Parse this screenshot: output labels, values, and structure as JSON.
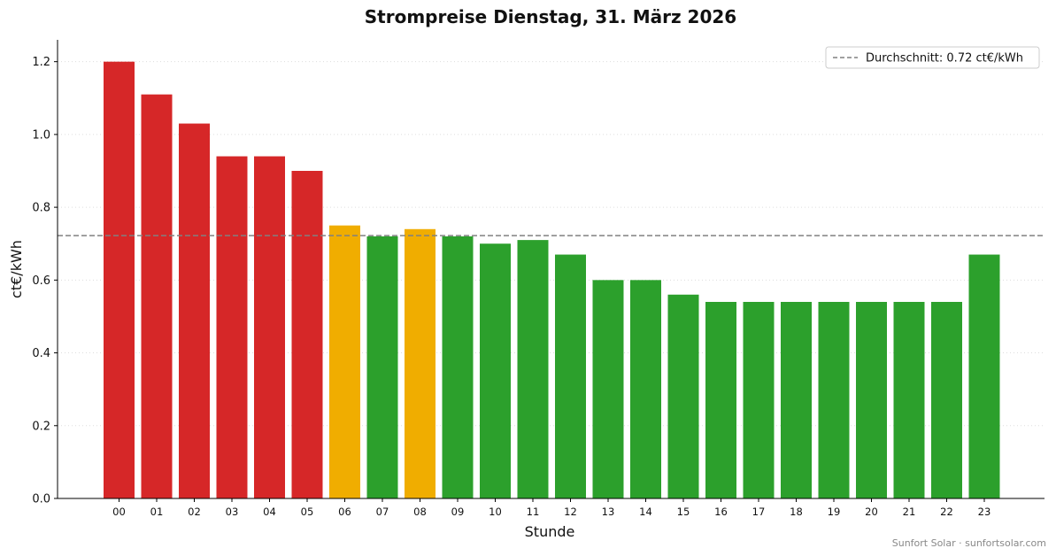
{
  "chart_data": {
    "type": "bar",
    "title": "Strompreise Dienstag, 31. März 2026",
    "xlabel": "Stunde",
    "ylabel": "ct€/kWh",
    "ylim": [
      0,
      1.26
    ],
    "yticks": [
      "0.0",
      "0.2",
      "0.4",
      "0.6",
      "0.8",
      "1.0",
      "1.2"
    ],
    "categories": [
      "00",
      "01",
      "02",
      "03",
      "04",
      "05",
      "06",
      "07",
      "08",
      "09",
      "10",
      "11",
      "12",
      "13",
      "14",
      "15",
      "16",
      "17",
      "18",
      "19",
      "20",
      "21",
      "22",
      "23"
    ],
    "values": [
      1.2,
      1.11,
      1.03,
      0.94,
      0.94,
      0.9,
      0.75,
      0.72,
      0.74,
      0.72,
      0.7,
      0.71,
      0.67,
      0.6,
      0.6,
      0.56,
      0.54,
      0.54,
      0.54,
      0.54,
      0.54,
      0.54,
      0.54,
      0.67
    ],
    "bar_colors": [
      "#d62728",
      "#d62728",
      "#d62728",
      "#d62728",
      "#d62728",
      "#d62728",
      "#f0ad00",
      "#2ca02c",
      "#f0ad00",
      "#2ca02c",
      "#2ca02c",
      "#2ca02c",
      "#2ca02c",
      "#2ca02c",
      "#2ca02c",
      "#2ca02c",
      "#2ca02c",
      "#2ca02c",
      "#2ca02c",
      "#2ca02c",
      "#2ca02c",
      "#2ca02c",
      "#2ca02c",
      "#2ca02c"
    ],
    "average": 0.722,
    "legend": {
      "label": "Durchschnitt: 0.72 ct€/kWh",
      "position": "top-right"
    },
    "grid": "horizontal-dotted",
    "colors": {
      "high": "#d62728",
      "medium": "#f0ad00",
      "low": "#2ca02c",
      "average_line": "#808080"
    }
  },
  "footer": "Sunfort Solar · sunfortsolar.com"
}
